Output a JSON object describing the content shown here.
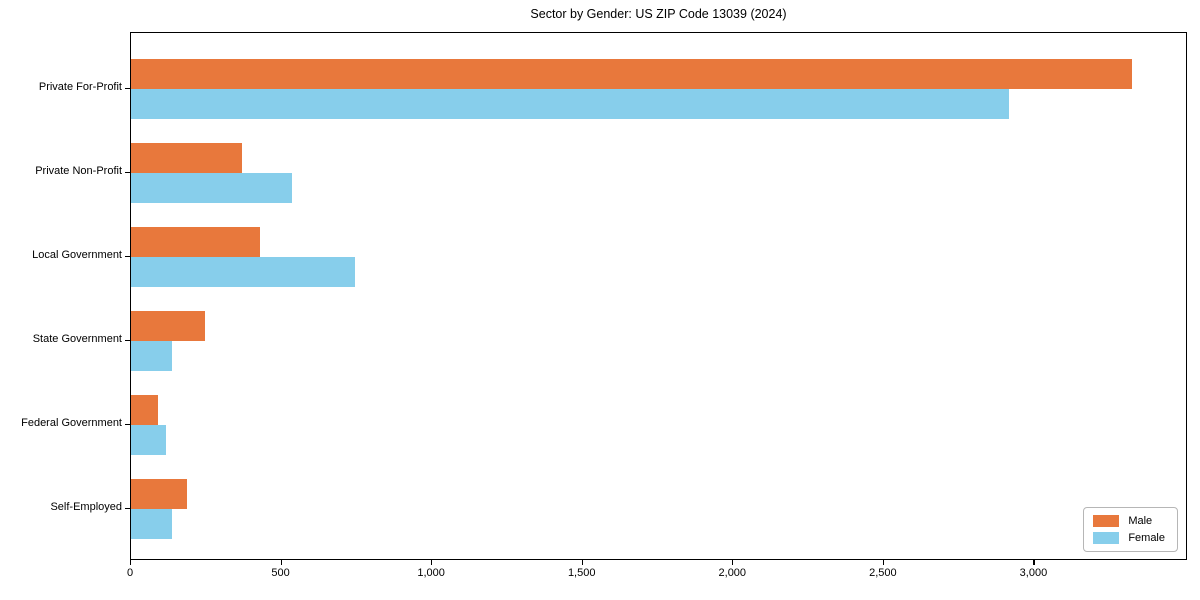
{
  "chart_data": {
    "type": "bar",
    "orientation": "horizontal",
    "title": "Sector by Gender: US ZIP Code 13039 (2024)",
    "categories": [
      "Private For-Profit",
      "Private Non-Profit",
      "Local Government",
      "State Government",
      "Federal Government",
      "Self-Employed"
    ],
    "series": [
      {
        "name": "Male",
        "color": "#e8783c",
        "values": [
          3325,
          370,
          430,
          245,
          90,
          185
        ]
      },
      {
        "name": "Female",
        "color": "#87ceeb",
        "values": [
          2915,
          535,
          745,
          135,
          115,
          135
        ]
      }
    ],
    "xlabel": "",
    "ylabel": "",
    "xlim": [
      0,
      3500
    ],
    "xticks": [
      0,
      500,
      1000,
      1500,
      2000,
      2500,
      3000
    ],
    "xtick_labels": [
      "0",
      "500",
      "1,000",
      "1,500",
      "2,000",
      "2,500",
      "3,000"
    ],
    "grid": false,
    "legend_position": "lower right"
  },
  "legend": {
    "items": [
      {
        "label": "Male",
        "color": "#e8783c"
      },
      {
        "label": "Female",
        "color": "#87ceeb"
      }
    ]
  }
}
